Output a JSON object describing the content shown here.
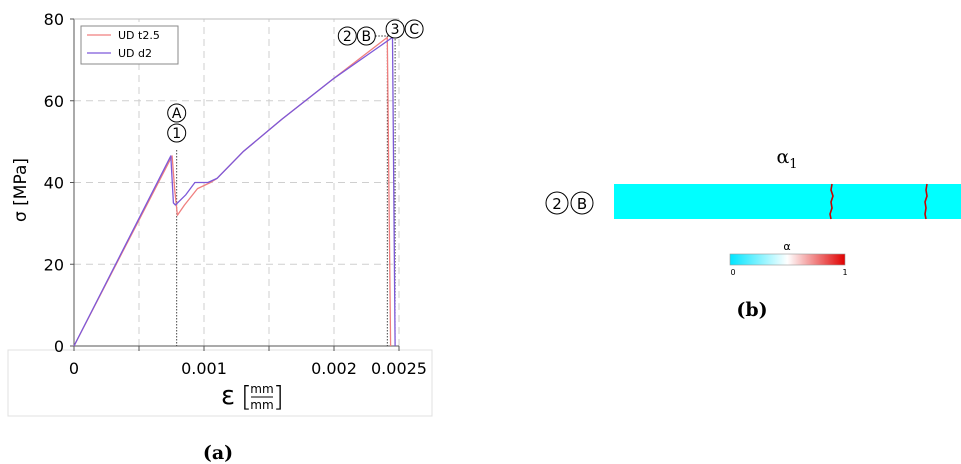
{
  "chart_data": [
    {
      "type": "line",
      "panel_label": "(a)",
      "ylabel": "σ [MPa]",
      "xlabel_symbol": "ε",
      "xlabel_unit_num": "mm",
      "xlabel_unit_den": "mm",
      "xlim": [
        0,
        0.0025
      ],
      "ylim": [
        0,
        80
      ],
      "xticks": [
        0,
        0.0005,
        0.001,
        0.0015,
        0.002,
        0.0025
      ],
      "xtick_labels": [
        "0",
        "",
        "0.001",
        "",
        "0.002",
        "0.0025"
      ],
      "yticks": [
        0,
        20,
        40,
        60,
        80
      ],
      "ytick_labels": [
        "0",
        "20",
        "40",
        "60",
        "80"
      ],
      "grid": true,
      "legend_position": "top-left",
      "series": [
        {
          "name": "UD t2.5",
          "color": "#f07f7f",
          "points": [
            [
              0,
              0
            ],
            [
              0.000755,
              46.5
            ],
            [
              0.000775,
              38
            ],
            [
              0.000795,
              32
            ],
            [
              0.00085,
              34.5
            ],
            [
              0.00095,
              38.5
            ],
            [
              0.00105,
              40
            ],
            [
              0.0011,
              41
            ],
            [
              0.0013,
              47.5
            ],
            [
              0.0016,
              55.5
            ],
            [
              0.002,
              65.5
            ],
            [
              0.00241,
              75.5
            ],
            [
              0.002435,
              0
            ]
          ]
        },
        {
          "name": "UD d2",
          "color": "#7d59d9",
          "points": [
            [
              0,
              0
            ],
            [
              0.000745,
              46.5
            ],
            [
              0.000765,
              35
            ],
            [
              0.00078,
              34.5
            ],
            [
              0.00086,
              37
            ],
            [
              0.00093,
              40
            ],
            [
              0.00103,
              40
            ],
            [
              0.0011,
              41
            ],
            [
              0.0013,
              47.5
            ],
            [
              0.0016,
              55.5
            ],
            [
              0.002,
              65.5
            ],
            [
              0.00245,
              75.5
            ],
            [
              0.00247,
              0
            ]
          ]
        }
      ],
      "markers": [
        {
          "labels": [
            "A",
            "1"
          ],
          "x": 0.00079
        },
        {
          "labels": [
            "2",
            "B"
          ],
          "x": 0.00241
        },
        {
          "labels": [
            "3",
            "C"
          ],
          "x": 0.00247
        }
      ]
    },
    {
      "type": "heatmap",
      "panel_label": "(b)",
      "title": "α1",
      "title_base": "α",
      "title_sub": "1",
      "row_labels": [
        "2",
        "B"
      ],
      "base_color": "#00ffff",
      "crack_color": "#cc0000",
      "colorbar": {
        "label": "α",
        "min": "0",
        "max": "1",
        "colors": [
          "#00e5ff",
          "#ffffff",
          "#e00000"
        ]
      }
    }
  ]
}
